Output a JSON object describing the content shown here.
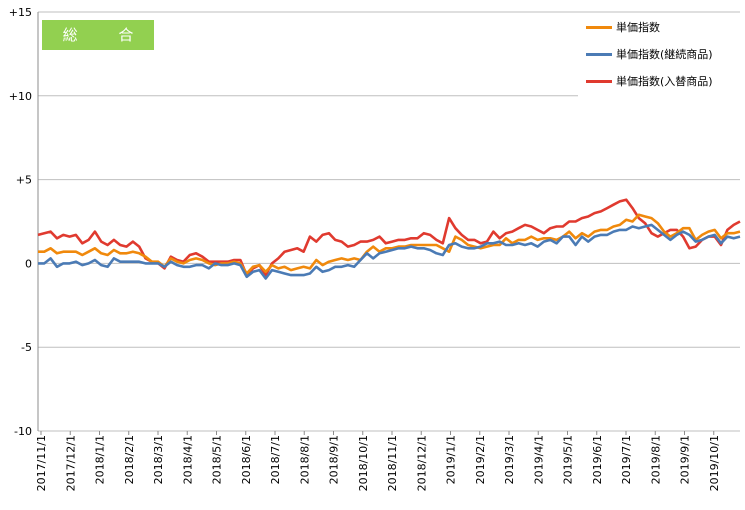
{
  "badge": {
    "label": "総 合"
  },
  "legend_items": [
    {
      "label": "単価指数",
      "color": "#f0890c"
    },
    {
      "label": "単価指数(継続商品)",
      "color": "#4b7bb5"
    },
    {
      "label": "単価指数(入替商品)",
      "color": "#e03a2f"
    }
  ],
  "chart_data": {
    "type": "line",
    "title": "",
    "xlabel": "",
    "ylabel": "",
    "ylim": [
      -10,
      15
    ],
    "yticks": [
      {
        "value": 15,
        "label": "+15"
      },
      {
        "value": 10,
        "label": "+10"
      },
      {
        "value": 5,
        "label": "+5"
      },
      {
        "value": 0,
        "label": "0"
      },
      {
        "value": -5,
        "label": "-5"
      },
      {
        "value": -10,
        "label": "-10"
      }
    ],
    "grid": "horizontal",
    "legend_position": "top-right",
    "x_tick_labels": [
      "2017/11/1",
      "2017/12/1",
      "2018/1/1",
      "2018/2/1",
      "2018/3/1",
      "2018/4/1",
      "2018/5/1",
      "2018/6/1",
      "2018/7/1",
      "2018/8/1",
      "2018/9/1",
      "2018/10/1",
      "2018/11/1",
      "2018/12/1",
      "2019/1/1",
      "2019/2/1",
      "2019/3/1",
      "2019/4/1",
      "2019/5/1",
      "2019/6/1",
      "2019/7/1",
      "2019/8/1",
      "2019/9/1",
      "2019/10/1"
    ],
    "series": [
      {
        "name": "単価指数",
        "color": "#f0890c",
        "values": [
          0.7,
          0.7,
          0.9,
          0.6,
          0.7,
          0.7,
          0.7,
          0.5,
          0.7,
          0.9,
          0.6,
          0.5,
          0.8,
          0.6,
          0.6,
          0.7,
          0.6,
          0.4,
          0.1,
          0.1,
          -0.2,
          0.3,
          0.1,
          0.0,
          0.2,
          0.3,
          0.2,
          0.0,
          -0.1,
          0.0,
          0.0,
          0.1,
          0.0,
          -0.6,
          -0.2,
          -0.1,
          -0.5,
          -0.1,
          -0.3,
          -0.2,
          -0.4,
          -0.3,
          -0.2,
          -0.3,
          0.2,
          -0.1,
          0.1,
          0.2,
          0.3,
          0.2,
          0.3,
          0.2,
          0.7,
          1.0,
          0.7,
          0.9,
          0.9,
          1.0,
          1.0,
          1.1,
          1.1,
          1.1,
          1.1,
          1.1,
          0.9,
          0.7,
          1.6,
          1.4,
          1.1,
          1.0,
          0.9,
          1.0,
          1.1,
          1.1,
          1.5,
          1.2,
          1.4,
          1.4,
          1.6,
          1.4,
          1.5,
          1.5,
          1.4,
          1.6,
          1.9,
          1.5,
          1.8,
          1.6,
          1.9,
          2.0,
          2.0,
          2.2,
          2.3,
          2.6,
          2.5,
          2.9,
          2.8,
          2.7,
          2.4,
          1.9,
          1.6,
          1.8,
          2.1,
          2.1,
          1.4,
          1.7,
          1.9,
          2.0,
          1.5,
          1.8,
          1.8,
          1.9
        ]
      },
      {
        "name": "単価指数(継続商品)",
        "color": "#4b7bb5",
        "values": [
          0.0,
          0.0,
          0.3,
          -0.2,
          0.0,
          0.0,
          0.1,
          -0.1,
          0.0,
          0.2,
          -0.1,
          -0.2,
          0.3,
          0.1,
          0.1,
          0.1,
          0.1,
          0.0,
          0.0,
          0.0,
          -0.2,
          0.1,
          -0.1,
          -0.2,
          -0.2,
          -0.1,
          -0.1,
          -0.3,
          0.0,
          -0.1,
          -0.1,
          0.0,
          -0.1,
          -0.8,
          -0.5,
          -0.4,
          -0.9,
          -0.4,
          -0.5,
          -0.6,
          -0.7,
          -0.7,
          -0.7,
          -0.6,
          -0.2,
          -0.5,
          -0.4,
          -0.2,
          -0.2,
          -0.1,
          -0.2,
          0.2,
          0.6,
          0.3,
          0.6,
          0.7,
          0.8,
          0.9,
          0.9,
          1.0,
          0.9,
          0.9,
          0.8,
          0.6,
          0.5,
          1.1,
          1.2,
          1.0,
          0.9,
          0.9,
          1.0,
          1.2,
          1.2,
          1.3,
          1.1,
          1.1,
          1.2,
          1.1,
          1.2,
          1.0,
          1.3,
          1.4,
          1.2,
          1.6,
          1.6,
          1.1,
          1.6,
          1.3,
          1.6,
          1.7,
          1.7,
          1.9,
          2.0,
          2.0,
          2.2,
          2.1,
          2.2,
          2.3,
          2.0,
          1.7,
          1.4,
          1.7,
          1.9,
          1.7,
          1.3,
          1.4,
          1.6,
          1.7,
          1.2,
          1.6,
          1.5,
          1.6
        ]
      },
      {
        "name": "単価指数(入替商品)",
        "color": "#e03a2f",
        "values": [
          1.7,
          1.8,
          1.9,
          1.5,
          1.7,
          1.6,
          1.7,
          1.2,
          1.4,
          1.9,
          1.3,
          1.1,
          1.4,
          1.1,
          1.0,
          1.3,
          1.0,
          0.3,
          0.1,
          0.0,
          -0.3,
          0.4,
          0.2,
          0.1,
          0.5,
          0.6,
          0.4,
          0.1,
          0.1,
          0.1,
          0.1,
          0.2,
          0.2,
          -0.7,
          -0.3,
          -0.1,
          -0.7,
          0.0,
          0.3,
          0.7,
          0.8,
          0.9,
          0.7,
          1.6,
          1.3,
          1.7,
          1.8,
          1.4,
          1.3,
          1.0,
          1.1,
          1.3,
          1.3,
          1.4,
          1.6,
          1.2,
          1.3,
          1.4,
          1.4,
          1.5,
          1.5,
          1.8,
          1.7,
          1.4,
          1.2,
          2.7,
          2.1,
          1.7,
          1.4,
          1.4,
          1.2,
          1.3,
          1.9,
          1.5,
          1.8,
          1.9,
          2.1,
          2.3,
          2.2,
          2.0,
          1.8,
          2.1,
          2.2,
          2.2,
          2.5,
          2.5,
          2.7,
          2.8,
          3.0,
          3.1,
          3.3,
          3.5,
          3.7,
          3.8,
          3.3,
          2.7,
          2.4,
          1.8,
          1.6,
          1.8,
          2.0,
          2.0,
          1.6,
          0.9,
          1.0,
          1.4,
          1.6,
          1.6,
          1.1,
          2.0,
          2.3,
          2.5
        ]
      }
    ]
  }
}
